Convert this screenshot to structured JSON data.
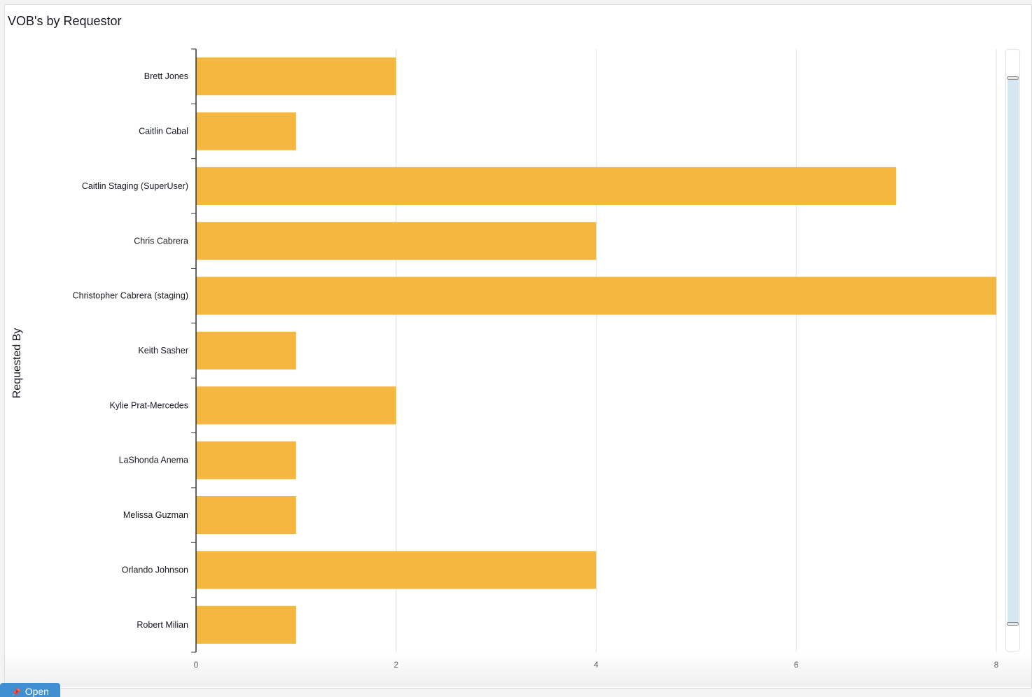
{
  "panel": {
    "title": "VOB's by Requestor",
    "open_button_label": "Open",
    "open_icon": "pin-icon"
  },
  "colors": {
    "bar": "#f4b73f",
    "grid": "#e3e3e3",
    "axis": "#333333",
    "scroll_range": "#d6e7f4"
  },
  "chart_data": {
    "type": "bar",
    "orientation": "horizontal",
    "title": "VOB's by Requestor",
    "xlabel": "",
    "ylabel": "Requested By",
    "categories": [
      "Brett Jones",
      "Caitlin Cabal",
      "Caitlin Staging (SuperUser)",
      "Chris Cabrera",
      "Christopher Cabrera (staging)",
      "Keith Sasher",
      "Kylie Prat-Mercedes",
      "LaShonda Anema",
      "Melissa Guzman",
      "Orlando Johnson",
      "Robert Milian"
    ],
    "values": [
      2,
      1,
      7,
      4,
      8,
      1,
      2,
      1,
      1,
      4,
      1
    ],
    "xlim": [
      0,
      8
    ],
    "xticks": [
      0,
      2,
      4,
      6,
      8
    ],
    "grid": true,
    "legend": "none"
  }
}
